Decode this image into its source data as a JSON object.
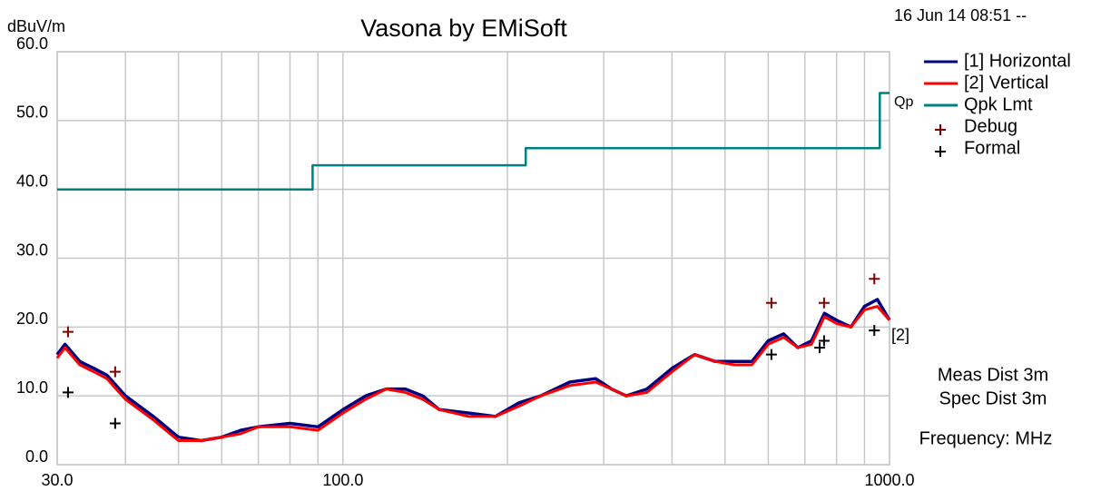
{
  "chart_data": {
    "type": "line",
    "title": "Vasona by EMiSoft",
    "ylabel": "dBuV/m",
    "timestamp": "16 Jun 14 08:51 --",
    "xlog": true,
    "grid": true,
    "legend": "upper right",
    "xlim": [
      30,
      1000
    ],
    "ylim": [
      0,
      60
    ],
    "xticks": [
      {
        "value": 30,
        "label": "30.0"
      },
      {
        "value": 100,
        "label": "100.0"
      },
      {
        "value": 1000,
        "label": "1000.0"
      }
    ],
    "xgrid": [
      30,
      40,
      50,
      60,
      70,
      80,
      90,
      100,
      200,
      300,
      400,
      500,
      600,
      700,
      800,
      900,
      1000
    ],
    "yticks": [
      {
        "value": 0,
        "label": "0.0"
      },
      {
        "value": 10,
        "label": "10.0"
      },
      {
        "value": 20,
        "label": "20.0"
      },
      {
        "value": 30,
        "label": "30.0"
      },
      {
        "value": 40,
        "label": "40.0"
      },
      {
        "value": 50,
        "label": "50.0"
      },
      {
        "value": 60,
        "label": "60.0"
      }
    ],
    "series": [
      {
        "name": "[1] Horizontal",
        "type": "line",
        "color": "#000080",
        "x": [
          30,
          31,
          33,
          35,
          37,
          40,
          45,
          50,
          55,
          60,
          65,
          70,
          80,
          90,
          100,
          110,
          120,
          130,
          140,
          150,
          170,
          190,
          210,
          230,
          260,
          290,
          310,
          330,
          360,
          400,
          440,
          480,
          520,
          560,
          600,
          640,
          680,
          720,
          760,
          800,
          850,
          900,
          950,
          1000
        ],
        "values": [
          16,
          17.5,
          15,
          14,
          13,
          10,
          7,
          4,
          3.5,
          4,
          5,
          5.5,
          6,
          5.5,
          8,
          10,
          11,
          11,
          10,
          8,
          7.5,
          7,
          9,
          10,
          12,
          12.5,
          11,
          10,
          11,
          14,
          16,
          15,
          15,
          15,
          18,
          19,
          17,
          18,
          22,
          21,
          20,
          23,
          24,
          21
        ]
      },
      {
        "name": "[2] Vertical",
        "type": "line",
        "color": "#ff0000",
        "x": [
          30,
          31,
          33,
          35,
          37,
          40,
          45,
          50,
          55,
          60,
          65,
          70,
          80,
          90,
          100,
          110,
          120,
          130,
          140,
          150,
          170,
          190,
          210,
          230,
          260,
          290,
          310,
          330,
          360,
          400,
          440,
          480,
          520,
          560,
          600,
          640,
          680,
          720,
          760,
          800,
          850,
          900,
          950,
          1000
        ],
        "values": [
          15.5,
          17,
          14.5,
          13.5,
          12.5,
          9.5,
          6.5,
          3.5,
          3.5,
          4,
          4.5,
          5.5,
          5.5,
          5,
          7.5,
          9.5,
          11,
          10.5,
          9.5,
          8,
          7,
          7,
          8.5,
          10,
          11.5,
          12,
          11,
          10,
          10.5,
          13.5,
          16,
          15,
          14.5,
          14.5,
          17.5,
          18.5,
          17,
          17.5,
          21.5,
          20.5,
          20,
          22.5,
          23,
          21
        ]
      },
      {
        "name": "Qpk Lmt",
        "type": "line",
        "color": "#008080",
        "x": [
          30,
          88,
          88,
          216,
          216,
          960,
          960,
          1000
        ],
        "values": [
          40,
          40,
          43.5,
          43.5,
          46,
          46,
          54,
          54
        ]
      },
      {
        "name": "Debug",
        "type": "scatter",
        "color": "#800000",
        "x": [
          31.4,
          38.3,
          608,
          759,
          938
        ],
        "values": [
          19.3,
          13.5,
          23.5,
          23.5,
          27
        ]
      },
      {
        "name": "Formal",
        "type": "scatter",
        "color": "#000000",
        "x": [
          31.4,
          38.3,
          608,
          745,
          759,
          938
        ],
        "values": [
          10.5,
          6,
          16,
          17,
          18,
          19.5
        ]
      }
    ],
    "annotations": [
      "Qp",
      "[2]",
      "Meas Dist 3m",
      "Spec Dist 3m",
      "Frequency: MHz"
    ]
  }
}
